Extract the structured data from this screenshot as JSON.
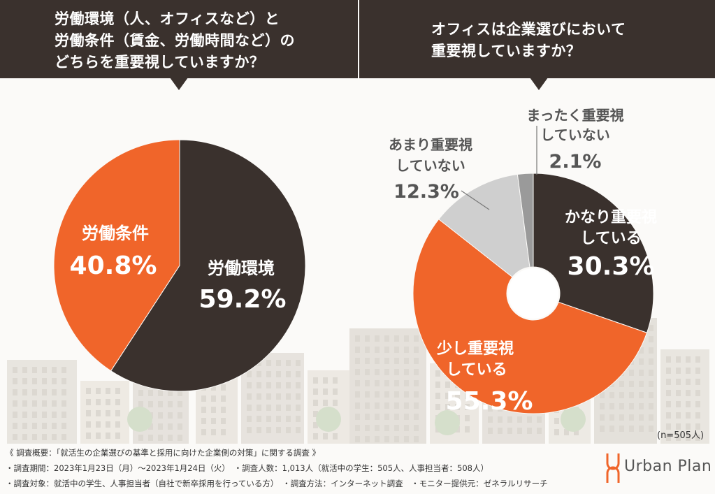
{
  "left_question": {
    "lines": [
      "労働環境（人、オフィスなど）と",
      "労働条件（賃金、労働時間など）の",
      "どちらを重要視していますか？"
    ]
  },
  "right_question": {
    "lines": [
      "オフィスは企業選びにおいて",
      "重要視していますか？"
    ]
  },
  "colors": {
    "dark": "#3a312d",
    "orange": "#f0652a",
    "light_gray": "#cfcfcf",
    "mid_gray": "#9a9a9a",
    "banner": "#3a312d"
  },
  "chart_data": [
    {
      "type": "pie",
      "slices": [
        {
          "name": "労働環境",
          "value": 59.2,
          "label_value": "59.2%",
          "color": "#3a312d"
        },
        {
          "name": "労働条件",
          "value": 40.8,
          "label_value": "40.8%",
          "color": "#f0652a"
        }
      ]
    },
    {
      "type": "pie",
      "donut": true,
      "slices": [
        {
          "name_lines": [
            "かなり重要視",
            "している"
          ],
          "value": 30.3,
          "label_value": "30.3%",
          "color": "#3a312d"
        },
        {
          "name_lines": [
            "少し重要視",
            "している"
          ],
          "value": 55.3,
          "label_value": "55.3%",
          "color": "#f0652a"
        },
        {
          "name_lines": [
            "あまり重要視",
            "していない"
          ],
          "value": 12.3,
          "label_value": "12.3%",
          "color": "#cfcfcf"
        },
        {
          "name_lines": [
            "まったく重要視",
            "していない"
          ],
          "value": 2.1,
          "label_value": "2.1%",
          "color": "#9a9a9a"
        }
      ]
    }
  ],
  "sample_size": "(n=505人)",
  "footer": {
    "line1": "《 調査概要：「就活生の企業選びの基準と採用に向けた企業側の対策」に関する調査 》",
    "line2": "・調査期間：2023年1月23日（月）〜2023年1月24日（火）　・調査人数：1,013人（就活中の学生：505人、人事担当者：508人）",
    "line3": "・調査対象：就活中の学生、人事担当者（自社で新卒採用を行っている方）　・調査方法：インターネット調査　・モニター提供元：ゼネラルリサーチ"
  },
  "logo": {
    "name": "Urban Plan"
  }
}
